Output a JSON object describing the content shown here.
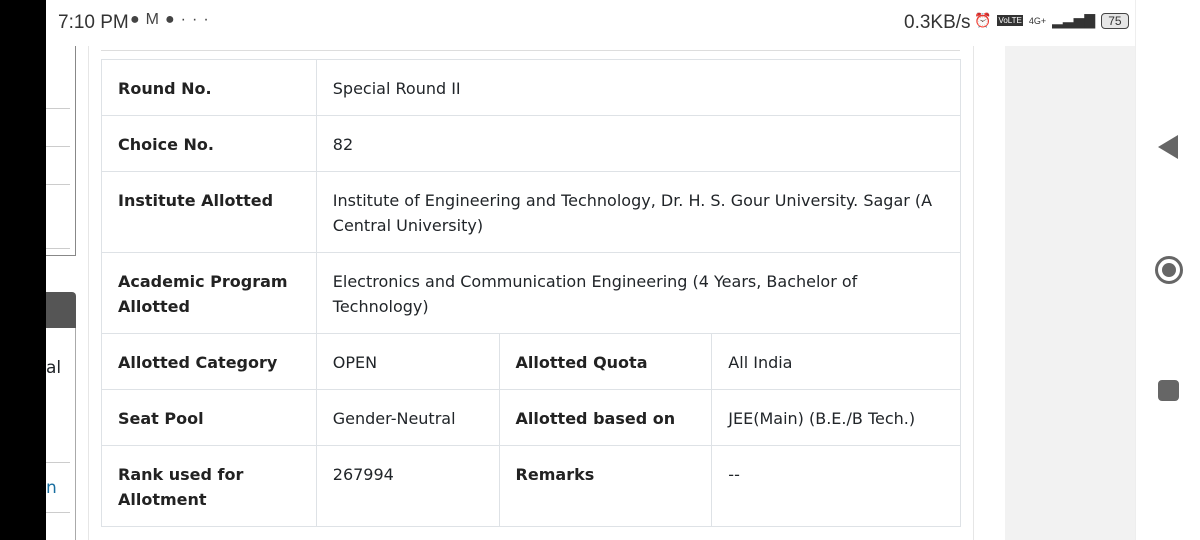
{
  "status_bar": {
    "time": "7:10 PM",
    "speed": "0.3KB/s",
    "network": "4G+",
    "volte": "VoLTE",
    "battery": "75",
    "notification_icons": [
      "chat-bubble-icon",
      "gmail-icon",
      "messages-icon",
      "more-icon"
    ]
  },
  "left_panel": {
    "partial_text_1": "al",
    "partial_text_2": "n"
  },
  "table": {
    "rows": [
      {
        "label": "Round No.",
        "value": "Special Round II"
      },
      {
        "label": "Choice No.",
        "value": "82"
      },
      {
        "label": "Institute Allotted",
        "value": "Institute of Engineering and Technology, Dr. H. S. Gour University. Sagar (A Central University)"
      },
      {
        "label": "Academic Program Allotted",
        "value": "Electronics and Communication Engineering (4 Years, Bachelor of Technology)"
      },
      {
        "label": "Allotted Category",
        "value": "OPEN",
        "label2": "Allotted Quota",
        "value2": "All India"
      },
      {
        "label": "Seat Pool",
        "value": "Gender-Neutral",
        "label2": "Allotted based on",
        "value2": "JEE(Main) (B.E./B Tech.)"
      },
      {
        "label": "Rank used for Allotment",
        "value": "267994",
        "label2": "Remarks",
        "value2": "--"
      }
    ]
  }
}
